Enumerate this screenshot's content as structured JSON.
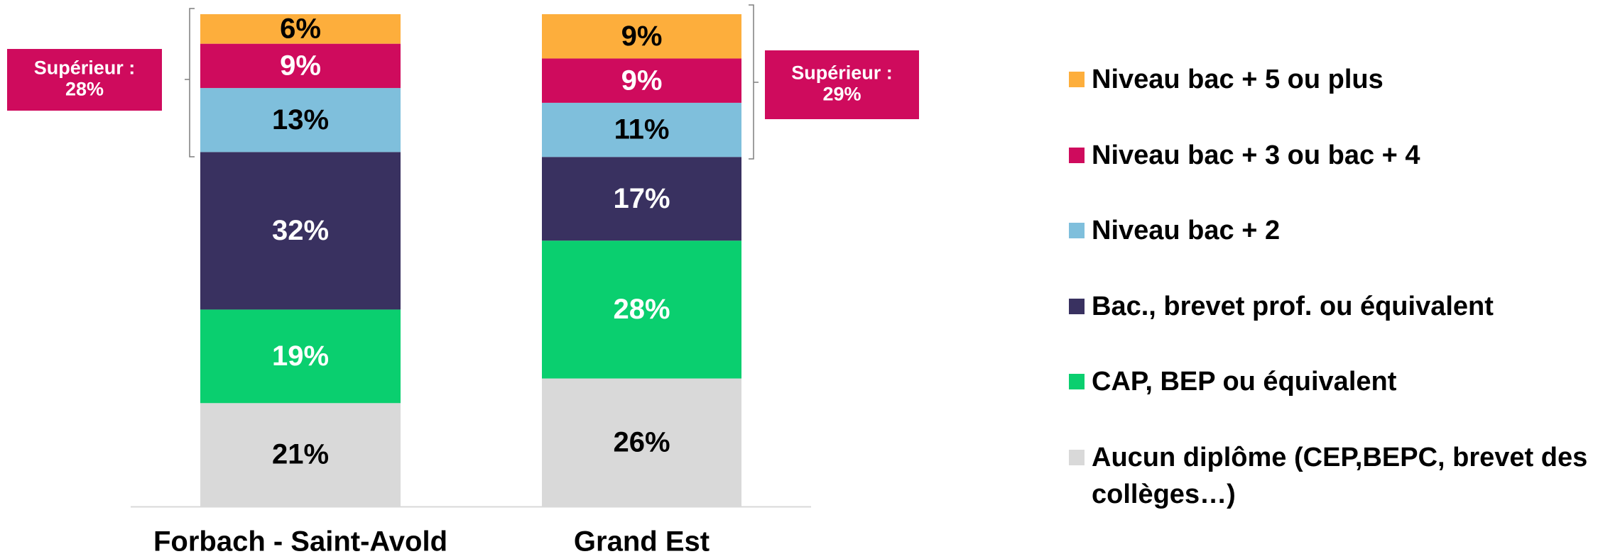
{
  "chart_data": {
    "type": "stacked_bar",
    "categories": [
      "Forbach - Saint-Avold",
      "Grand Est"
    ],
    "ylim": [
      0,
      100
    ],
    "series": [
      {
        "name": "Aucun diplôme (CEP,BEPC, brevet des collèges…)",
        "color": "#d9d9d9",
        "label_color": "#000000",
        "values": [
          21,
          26
        ],
        "value_labels": [
          "21%",
          "26%"
        ]
      },
      {
        "name": "CAP, BEP ou équivalent",
        "color": "#0acf6f",
        "label_color": "#ffffff",
        "values": [
          19,
          28
        ],
        "value_labels": [
          "19%",
          "28%"
        ]
      },
      {
        "name": "Bac., brevet prof. ou équivalent",
        "color": "#393160",
        "label_color": "#ffffff",
        "values": [
          32,
          17
        ],
        "value_labels": [
          "32%",
          "17%"
        ]
      },
      {
        "name": "Niveau bac + 2",
        "color": "#7fbfdc",
        "label_color": "#000000",
        "values": [
          13,
          11
        ],
        "value_labels": [
          "13%",
          "11%"
        ]
      },
      {
        "name": "Niveau bac + 3 ou bac + 4",
        "color": "#cf0b5d",
        "label_color": "#ffffff",
        "values": [
          9,
          9
        ],
        "value_labels": [
          "9%",
          "9%"
        ]
      },
      {
        "name": "Niveau bac + 5 ou plus",
        "color": "#fdae3c",
        "label_color": "#000000",
        "values": [
          6,
          9
        ],
        "value_labels": [
          "6%",
          "9%"
        ]
      }
    ],
    "annotations": [
      {
        "lines": [
          "Supérieur :",
          "28%"
        ],
        "color": "#cf0b5d"
      },
      {
        "lines": [
          "Supérieur :",
          "29%"
        ],
        "color": "#cf0b5d"
      }
    ]
  }
}
